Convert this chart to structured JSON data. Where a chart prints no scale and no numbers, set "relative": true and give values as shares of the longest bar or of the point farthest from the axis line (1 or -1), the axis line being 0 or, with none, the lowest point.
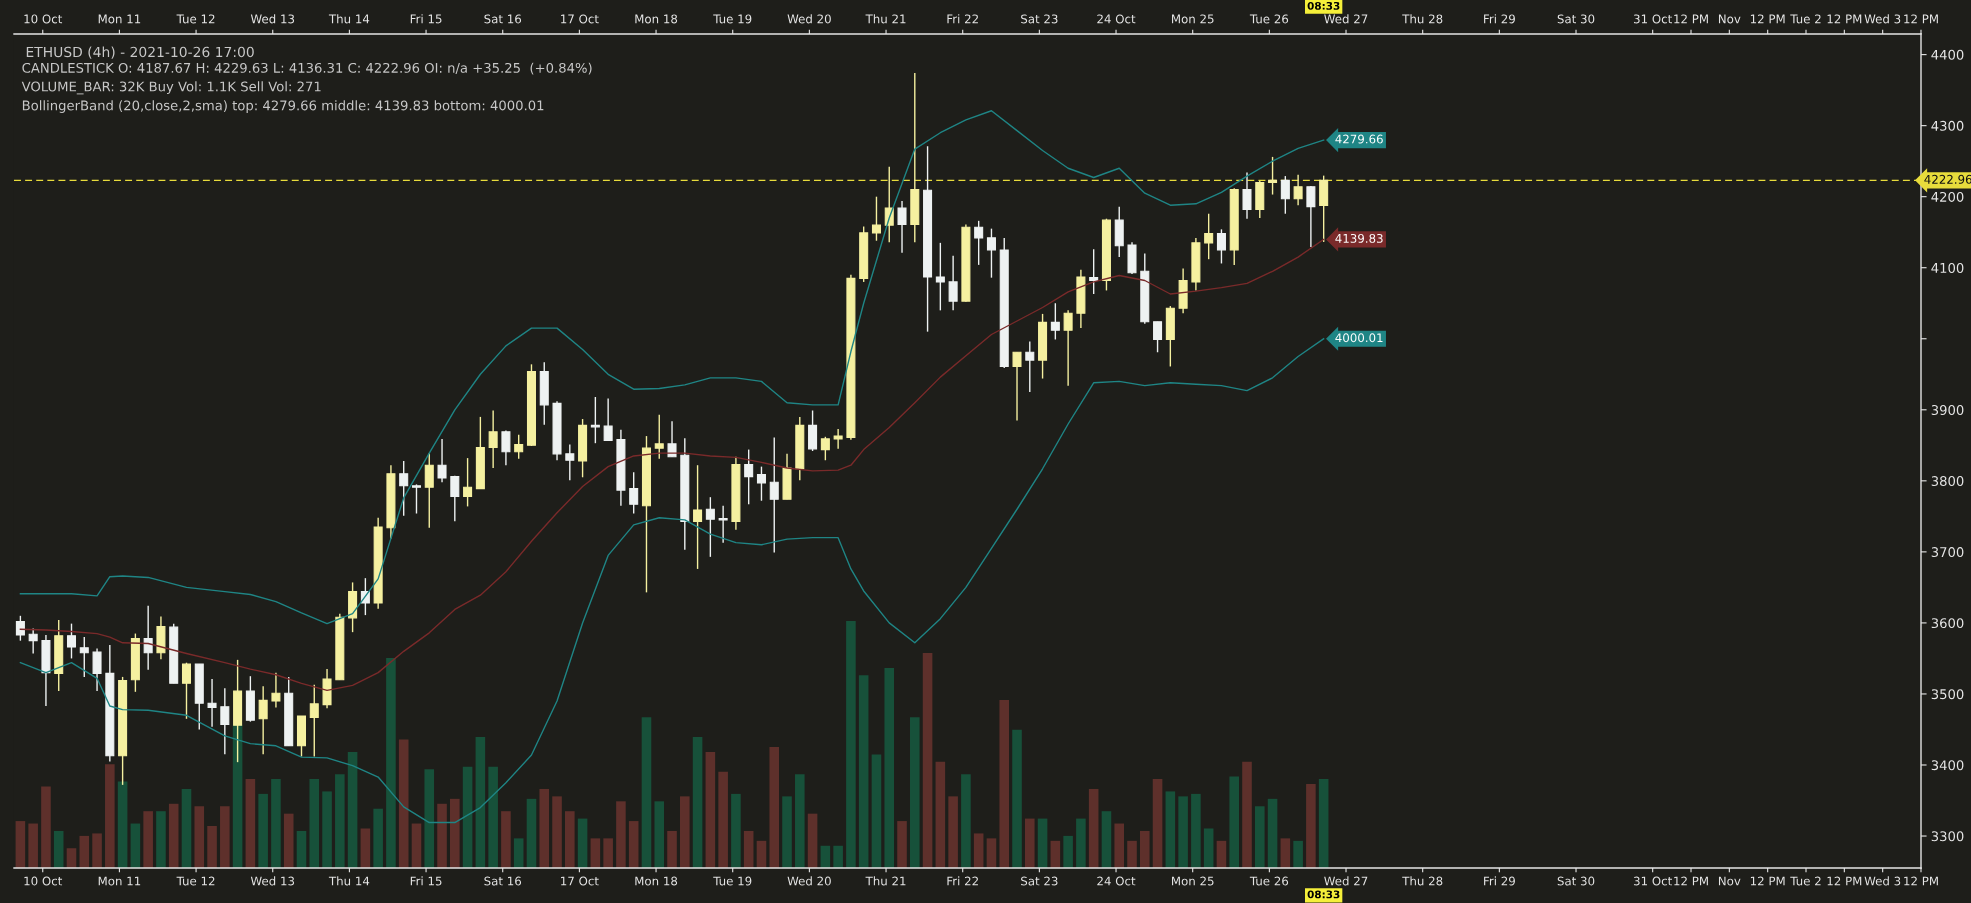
{
  "chart_data": [
    {
      "type": "candlestick",
      "title": "ETHUSD (4h) - 2021-10-26 17:00",
      "annotations": [
        "CANDLESTICK O: 4187.67 H: 4229.63 L: 4136.31 C: 4222.96 OI: n/a +35.25  (+0.84%)",
        "VOLUME_BAR: 32K Buy Vol: 1.1K Sell Vol: 271",
        "BollingerBand (20,close,2,sma) top: 4279.66 middle: 4139.83 bottom: 4000.01",
        "08:33",
        "08:33"
      ],
      "x": [
        "2021-10-09T17:00",
        "2021-10-09T21:00",
        "2021-10-10T01:00",
        "2021-10-10T05:00",
        "2021-10-10T09:00",
        "2021-10-10T13:00",
        "2021-10-10T17:00",
        "2021-10-10T21:00",
        "2021-10-11T01:00",
        "2021-10-11T05:00",
        "2021-10-11T09:00",
        "2021-10-11T13:00",
        "2021-10-11T17:00",
        "2021-10-11T21:00",
        "2021-10-12T01:00",
        "2021-10-12T05:00",
        "2021-10-12T09:00",
        "2021-10-12T13:00",
        "2021-10-12T17:00",
        "2021-10-12T21:00",
        "2021-10-13T01:00",
        "2021-10-13T05:00",
        "2021-10-13T09:00",
        "2021-10-13T13:00",
        "2021-10-13T17:00",
        "2021-10-13T21:00",
        "2021-10-14T01:00",
        "2021-10-14T05:00",
        "2021-10-14T09:00",
        "2021-10-14T13:00",
        "2021-10-14T17:00",
        "2021-10-14T21:00",
        "2021-10-15T01:00",
        "2021-10-15T05:00",
        "2021-10-15T09:00",
        "2021-10-15T13:00",
        "2021-10-15T17:00",
        "2021-10-15T21:00",
        "2021-10-16T01:00",
        "2021-10-16T05:00",
        "2021-10-16T09:00",
        "2021-10-16T13:00",
        "2021-10-16T17:00",
        "2021-10-16T21:00",
        "2021-10-17T01:00",
        "2021-10-17T05:00",
        "2021-10-17T09:00",
        "2021-10-17T13:00",
        "2021-10-17T17:00",
        "2021-10-17T21:00",
        "2021-10-18T01:00",
        "2021-10-18T05:00",
        "2021-10-18T09:00",
        "2021-10-18T13:00",
        "2021-10-18T17:00",
        "2021-10-18T21:00",
        "2021-10-19T01:00",
        "2021-10-19T05:00",
        "2021-10-19T09:00",
        "2021-10-19T13:00",
        "2021-10-19T17:00",
        "2021-10-19T21:00",
        "2021-10-20T01:00",
        "2021-10-20T05:00",
        "2021-10-20T09:00",
        "2021-10-20T13:00",
        "2021-10-20T17:00",
        "2021-10-20T21:00",
        "2021-10-21T01:00",
        "2021-10-21T05:00",
        "2021-10-21T09:00",
        "2021-10-21T13:00",
        "2021-10-21T17:00",
        "2021-10-21T21:00",
        "2021-10-22T01:00",
        "2021-10-22T05:00",
        "2021-10-22T09:00",
        "2021-10-22T13:00",
        "2021-10-22T17:00",
        "2021-10-22T21:00",
        "2021-10-23T01:00",
        "2021-10-23T05:00",
        "2021-10-23T09:00",
        "2021-10-23T13:00",
        "2021-10-23T17:00",
        "2021-10-23T21:00",
        "2021-10-24T01:00",
        "2021-10-24T05:00",
        "2021-10-24T09:00",
        "2021-10-24T13:00",
        "2021-10-24T17:00",
        "2021-10-24T21:00",
        "2021-10-25T01:00",
        "2021-10-25T05:00",
        "2021-10-25T09:00",
        "2021-10-25T13:00",
        "2021-10-25T17:00",
        "2021-10-25T21:00",
        "2021-10-26T01:00",
        "2021-10-26T05:00",
        "2021-10-26T09:00",
        "2021-10-26T13:00",
        "2021-10-26T17:00"
      ],
      "ohlc": [
        [
          3602,
          3610,
          3575,
          3583
        ],
        [
          3584,
          3592,
          3557,
          3575
        ],
        [
          3575,
          3583,
          3483,
          3530
        ],
        [
          3529,
          3604,
          3504,
          3582
        ],
        [
          3582,
          3599,
          3550,
          3566
        ],
        [
          3565,
          3580,
          3524,
          3558
        ],
        [
          3559,
          3564,
          3504,
          3529
        ],
        [
          3529,
          3569,
          3405,
          3413
        ],
        [
          3413,
          3524,
          3372,
          3519
        ],
        [
          3520,
          3585,
          3503,
          3578
        ],
        [
          3578,
          3624,
          3534,
          3558
        ],
        [
          3558,
          3609,
          3549,
          3595
        ],
        [
          3594,
          3599,
          3515,
          3515
        ],
        [
          3515,
          3544,
          3465,
          3542
        ],
        [
          3542,
          3542,
          3450,
          3487
        ],
        [
          3487,
          3521,
          3454,
          3481
        ],
        [
          3482,
          3508,
          3415,
          3457
        ],
        [
          3456,
          3548,
          3404,
          3504
        ],
        [
          3504,
          3525,
          3461,
          3463
        ],
        [
          3465,
          3511,
          3415,
          3491
        ],
        [
          3490,
          3530,
          3481,
          3501
        ],
        [
          3501,
          3524,
          3427,
          3427
        ],
        [
          3427,
          3469,
          3412,
          3469
        ],
        [
          3467,
          3513,
          3412,
          3486
        ],
        [
          3485,
          3535,
          3480,
          3521
        ],
        [
          3520,
          3613,
          3520,
          3608
        ],
        [
          3607,
          3657,
          3587,
          3644
        ],
        [
          3644,
          3663,
          3611,
          3628
        ],
        [
          3628,
          3748,
          3620,
          3735
        ],
        [
          3734,
          3822,
          3719,
          3810
        ],
        [
          3810,
          3828,
          3751,
          3793
        ],
        [
          3793,
          3795,
          3754,
          3791
        ],
        [
          3791,
          3839,
          3734,
          3822
        ],
        [
          3822,
          3859,
          3798,
          3804
        ],
        [
          3806,
          3807,
          3743,
          3778
        ],
        [
          3778,
          3832,
          3764,
          3791
        ],
        [
          3789,
          3890,
          3789,
          3847
        ],
        [
          3847,
          3899,
          3818,
          3869
        ],
        [
          3869,
          3871,
          3822,
          3841
        ],
        [
          3841,
          3865,
          3831,
          3851
        ],
        [
          3850,
          3964,
          3849,
          3954
        ],
        [
          3954,
          3967,
          3879,
          3907
        ],
        [
          3909,
          3912,
          3829,
          3838
        ],
        [
          3838,
          3851,
          3801,
          3829
        ],
        [
          3828,
          3887,
          3805,
          3878
        ],
        [
          3878,
          3918,
          3853,
          3876
        ],
        [
          3877,
          3916,
          3857,
          3857
        ],
        [
          3858,
          3872,
          3765,
          3787
        ],
        [
          3789,
          3812,
          3754,
          3767
        ],
        [
          3765,
          3863,
          3643,
          3846
        ],
        [
          3846,
          3893,
          3831,
          3852
        ],
        [
          3852,
          3884,
          3834,
          3834
        ],
        [
          3836,
          3860,
          3703,
          3743
        ],
        [
          3743,
          3822,
          3676,
          3759
        ],
        [
          3760,
          3777,
          3693,
          3746
        ],
        [
          3747,
          3765,
          3713,
          3745
        ],
        [
          3743,
          3834,
          3731,
          3823
        ],
        [
          3823,
          3844,
          3767,
          3806
        ],
        [
          3809,
          3820,
          3772,
          3797
        ],
        [
          3798,
          3861,
          3699,
          3774
        ],
        [
          3774,
          3838,
          3774,
          3818
        ],
        [
          3817,
          3890,
          3801,
          3878
        ],
        [
          3878,
          3899,
          3842,
          3845
        ],
        [
          3844,
          3862,
          3829,
          3859
        ],
        [
          3859,
          3873,
          3845,
          3863
        ],
        [
          3861,
          4090,
          3858,
          4085
        ],
        [
          4085,
          4158,
          4080,
          4149
        ],
        [
          4149,
          4200,
          4138,
          4160
        ],
        [
          4160,
          4242,
          4136,
          4184
        ],
        [
          4184,
          4194,
          4121,
          4161
        ],
        [
          4161,
          4374,
          4136,
          4210
        ],
        [
          4209,
          4271,
          4010,
          4087
        ],
        [
          4087,
          4135,
          4040,
          4080
        ],
        [
          4080,
          4117,
          4040,
          4053
        ],
        [
          4053,
          4161,
          4052,
          4157
        ],
        [
          4157,
          4166,
          4104,
          4142
        ],
        [
          4142,
          4155,
          4086,
          4125
        ],
        [
          4125,
          4142,
          3959,
          3961
        ],
        [
          3961,
          3981,
          3885,
          3981
        ],
        [
          3981,
          3996,
          3925,
          3970
        ],
        [
          3970,
          4035,
          3944,
          4023
        ],
        [
          4023,
          4050,
          3999,
          4012
        ],
        [
          4012,
          4040,
          3934,
          4036
        ],
        [
          4036,
          4097,
          4015,
          4087
        ],
        [
          4086,
          4126,
          4063,
          4082
        ],
        [
          4082,
          4169,
          4068,
          4167
        ],
        [
          4167,
          4186,
          4115,
          4131
        ],
        [
          4132,
          4136,
          4091,
          4093
        ],
        [
          4095,
          4120,
          4021,
          4024
        ],
        [
          4024,
          4024,
          3981,
          3999
        ],
        [
          3999,
          4046,
          3961,
          4043
        ],
        [
          4043,
          4099,
          4036,
          4082
        ],
        [
          4080,
          4142,
          4068,
          4135
        ],
        [
          4135,
          4176,
          4112,
          4148
        ],
        [
          4148,
          4154,
          4106,
          4125
        ],
        [
          4125,
          4212,
          4104,
          4210
        ],
        [
          4210,
          4234,
          4169,
          4182
        ],
        [
          4182,
          4222,
          4170,
          4220
        ],
        [
          4220,
          4256,
          4203,
          4223
        ],
        [
          4223,
          4229,
          4176,
          4197
        ],
        [
          4197,
          4231,
          4188,
          4214
        ],
        [
          4214,
          4215,
          4129,
          4186
        ],
        [
          4187.67,
          4229.63,
          4136.31,
          4222.96
        ]
      ],
      "colors": [
        "#eef2f2",
        "#eef2f2",
        "#eef2f2",
        "#f5f0a0",
        "#eef2f2",
        "#eef2f2",
        "#eef2f2",
        "#eef2f2",
        "#f5f0a0",
        "#f5f0a0",
        "#eef2f2",
        "#f5f0a0",
        "#eef2f2",
        "#f5f0a0",
        "#eef2f2",
        "#eef2f2",
        "#eef2f2",
        "#f5f0a0",
        "#eef2f2",
        "#f5f0a0",
        "#f5f0a0",
        "#eef2f2",
        "#f5f0a0",
        "#f5f0a0",
        "#f5f0a0",
        "#f5f0a0",
        "#f5f0a0",
        "#eef2f2",
        "#f5f0a0",
        "#f5f0a0",
        "#eef2f2",
        "#eef2f2",
        "#f5f0a0",
        "#eef2f2",
        "#eef2f2",
        "#f5f0a0",
        "#f5f0a0",
        "#f5f0a0",
        "#eef2f2",
        "#f5f0a0",
        "#f5f0a0",
        "#eef2f2",
        "#eef2f2",
        "#eef2f2",
        "#f5f0a0",
        "#eef2f2",
        "#eef2f2",
        "#eef2f2",
        "#eef2f2",
        "#f5f0a0",
        "#f5f0a0",
        "#eef2f2",
        "#eef2f2",
        "#f5f0a0",
        "#eef2f2",
        "#eef2f2",
        "#f5f0a0",
        "#eef2f2",
        "#eef2f2",
        "#eef2f2",
        "#f5f0a0",
        "#f5f0a0",
        "#eef2f2",
        "#f5f0a0",
        "#f5f0a0",
        "#f5f0a0",
        "#f5f0a0",
        "#f5f0a0",
        "#f5f0a0",
        "#eef2f2",
        "#f5f0a0",
        "#eef2f2",
        "#eef2f2",
        "#eef2f2",
        "#f5f0a0",
        "#eef2f2",
        "#eef2f2",
        "#eef2f2",
        "#f5f0a0",
        "#eef2f2",
        "#f5f0a0",
        "#eef2f2",
        "#f5f0a0",
        "#f5f0a0",
        "#eef2f2",
        "#f5f0a0",
        "#eef2f2",
        "#eef2f2",
        "#eef2f2",
        "#eef2f2",
        "#f5f0a0",
        "#f5f0a0",
        "#f5f0a0",
        "#f5f0a0",
        "#eef2f2",
        "#f5f0a0",
        "#eef2f2",
        "#f5f0a0",
        "#f5f0a0",
        "#eef2f2",
        "#f5f0a0",
        "#eef2f2",
        "#f5f0a0"
      ],
      "series": [
        {
          "type": "line",
          "color": "#1f8585",
          "x": [
            "2021-10-09T17:00",
            "2021-10-10T01:00",
            "2021-10-10T09:00",
            "2021-10-10T17:00",
            "2021-10-10T21:00",
            "2021-10-11T01:00",
            "2021-10-11T09:00",
            "2021-10-11T21:00",
            "2021-10-12T09:00",
            "2021-10-12T17:00",
            "2021-10-13T01:00",
            "2021-10-13T09:00",
            "2021-10-13T17:00",
            "2021-10-14T01:00",
            "2021-10-14T09:00",
            "2021-10-14T17:00",
            "2021-10-15T01:00",
            "2021-10-15T09:00",
            "2021-10-15T17:00",
            "2021-10-16T01:00",
            "2021-10-16T09:00",
            "2021-10-16T17:00",
            "2021-10-17T01:00",
            "2021-10-17T09:00",
            "2021-10-17T17:00",
            "2021-10-18T01:00",
            "2021-10-18T09:00",
            "2021-10-18T17:00",
            "2021-10-19T01:00",
            "2021-10-19T09:00",
            "2021-10-19T17:00",
            "2021-10-20T01:00",
            "2021-10-20T09:00",
            "2021-10-20T13:00",
            "2021-10-20T17:00",
            "2021-10-21T01:00",
            "2021-10-21T09:00",
            "2021-10-21T17:00",
            "2021-10-22T01:00",
            "2021-10-22T09:00",
            "2021-10-22T17:00",
            "2021-10-23T01:00",
            "2021-10-23T09:00",
            "2021-10-23T17:00",
            "2021-10-24T01:00",
            "2021-10-24T09:00",
            "2021-10-24T17:00",
            "2021-10-25T01:00",
            "2021-10-25T09:00",
            "2021-10-25T17:00",
            "2021-10-26T01:00",
            "2021-10-26T09:00",
            "2021-10-26T17:00"
          ],
          "values": [
            3641,
            3641,
            3641,
            3638,
            3665,
            3666,
            3664,
            3650,
            3644,
            3640,
            3630,
            3614,
            3599,
            3613,
            3662,
            3776,
            3839,
            3900,
            3950,
            3990,
            4015,
            4015,
            3985,
            3950,
            3929,
            3930,
            3935,
            3945,
            3945,
            3940,
            3910,
            3907,
            3907,
            3982,
            4050,
            4170,
            4267,
            4290,
            4308,
            4321,
            4293,
            4265,
            4240,
            4227,
            4240,
            4205,
            4188,
            4190,
            4206,
            4229,
            4250,
            4268,
            4279.66
          ],
          "value_labels": [
            null,
            null,
            null,
            null,
            null,
            null,
            null,
            null,
            null,
            null,
            null,
            null,
            null,
            null,
            null,
            null,
            null,
            null,
            null,
            null,
            null,
            null,
            null,
            null,
            null,
            null,
            null,
            null,
            null,
            null,
            null,
            null,
            null,
            null,
            null,
            null,
            null,
            null,
            null,
            null,
            null,
            null,
            null,
            null,
            null,
            null,
            null,
            null,
            null,
            null,
            null,
            null,
            "4279.66"
          ]
        },
        {
          "type": "line",
          "color": "#7a2a2a",
          "x": [
            "2021-10-09T17:00",
            "2021-10-10T01:00",
            "2021-10-10T09:00",
            "2021-10-10T17:00",
            "2021-10-10T21:00",
            "2021-10-11T01:00",
            "2021-10-11T09:00",
            "2021-10-11T21:00",
            "2021-10-12T09:00",
            "2021-10-12T17:00",
            "2021-10-13T01:00",
            "2021-10-13T09:00",
            "2021-10-13T17:00",
            "2021-10-14T01:00",
            "2021-10-14T09:00",
            "2021-10-14T17:00",
            "2021-10-15T01:00",
            "2021-10-15T09:00",
            "2021-10-15T17:00",
            "2021-10-16T01:00",
            "2021-10-16T09:00",
            "2021-10-16T17:00",
            "2021-10-17T01:00",
            "2021-10-17T09:00",
            "2021-10-17T17:00",
            "2021-10-18T01:00",
            "2021-10-18T09:00",
            "2021-10-18T17:00",
            "2021-10-19T01:00",
            "2021-10-19T09:00",
            "2021-10-19T17:00",
            "2021-10-20T01:00",
            "2021-10-20T09:00",
            "2021-10-20T13:00",
            "2021-10-20T17:00",
            "2021-10-21T01:00",
            "2021-10-21T09:00",
            "2021-10-21T17:00",
            "2021-10-22T01:00",
            "2021-10-22T09:00",
            "2021-10-22T17:00",
            "2021-10-23T01:00",
            "2021-10-23T09:00",
            "2021-10-23T17:00",
            "2021-10-24T01:00",
            "2021-10-24T09:00",
            "2021-10-24T17:00",
            "2021-10-25T01:00",
            "2021-10-25T09:00",
            "2021-10-25T17:00",
            "2021-10-26T01:00",
            "2021-10-26T09:00",
            "2021-10-26T17:00"
          ],
          "values": [
            3591,
            3590,
            3588,
            3585,
            3580,
            3572,
            3571,
            3557,
            3544,
            3535,
            3527,
            3515,
            3505,
            3512,
            3530,
            3560,
            3586,
            3619,
            3639,
            3672,
            3715,
            3755,
            3792,
            3820,
            3835,
            3839,
            3839,
            3835,
            3833,
            3826,
            3818,
            3814,
            3815,
            3822,
            3844,
            3875,
            3910,
            3946,
            3976,
            4006,
            4025,
            4044,
            4066,
            4080,
            4089,
            4082,
            4063,
            4067,
            4072,
            4078,
            4095,
            4115,
            4139.83
          ],
          "value_labels": [
            null,
            null,
            null,
            null,
            null,
            null,
            null,
            null,
            null,
            null,
            null,
            null,
            null,
            null,
            null,
            null,
            null,
            null,
            null,
            null,
            null,
            null,
            null,
            null,
            null,
            null,
            null,
            null,
            null,
            null,
            null,
            null,
            null,
            null,
            null,
            null,
            null,
            null,
            null,
            null,
            null,
            null,
            null,
            null,
            null,
            null,
            null,
            null,
            null,
            null,
            null,
            null,
            "4139.83"
          ]
        },
        {
          "type": "line",
          "color": "#1f8585",
          "x": [
            "2021-10-09T17:00",
            "2021-10-10T01:00",
            "2021-10-10T09:00",
            "2021-10-10T17:00",
            "2021-10-10T21:00",
            "2021-10-11T01:00",
            "2021-10-11T09:00",
            "2021-10-11T21:00",
            "2021-10-12T09:00",
            "2021-10-12T17:00",
            "2021-10-13T01:00",
            "2021-10-13T09:00",
            "2021-10-13T17:00",
            "2021-10-14T01:00",
            "2021-10-14T09:00",
            "2021-10-14T17:00",
            "2021-10-15T01:00",
            "2021-10-15T09:00",
            "2021-10-15T17:00",
            "2021-10-16T01:00",
            "2021-10-16T09:00",
            "2021-10-16T17:00",
            "2021-10-17T01:00",
            "2021-10-17T09:00",
            "2021-10-17T17:00",
            "2021-10-18T01:00",
            "2021-10-18T09:00",
            "2021-10-18T17:00",
            "2021-10-19T01:00",
            "2021-10-19T09:00",
            "2021-10-19T17:00",
            "2021-10-20T01:00",
            "2021-10-20T09:00",
            "2021-10-20T13:00",
            "2021-10-20T17:00",
            "2021-10-21T01:00",
            "2021-10-21T09:00",
            "2021-10-21T17:00",
            "2021-10-22T01:00",
            "2021-10-22T09:00",
            "2021-10-22T17:00",
            "2021-10-23T01:00",
            "2021-10-23T09:00",
            "2021-10-23T17:00",
            "2021-10-24T01:00",
            "2021-10-24T09:00",
            "2021-10-24T17:00",
            "2021-10-25T01:00",
            "2021-10-25T09:00",
            "2021-10-25T17:00",
            "2021-10-26T01:00",
            "2021-10-26T09:00",
            "2021-10-26T17:00"
          ],
          "values": [
            3544,
            3530,
            3544,
            3522,
            3483,
            3478,
            3477,
            3470,
            3441,
            3430,
            3427,
            3411,
            3410,
            3399,
            3383,
            3341,
            3319,
            3319,
            3340,
            3375,
            3414,
            3490,
            3600,
            3695,
            3738,
            3748,
            3745,
            3725,
            3713,
            3710,
            3718,
            3720,
            3720,
            3676,
            3645,
            3600,
            3572,
            3606,
            3650,
            3705,
            3760,
            3817,
            3880,
            3938,
            3940,
            3934,
            3938,
            3936,
            3934,
            3927,
            3945,
            3975,
            4000.01
          ],
          "value_labels": [
            null,
            null,
            null,
            null,
            null,
            null,
            null,
            null,
            null,
            null,
            null,
            null,
            null,
            null,
            null,
            null,
            null,
            null,
            null,
            null,
            null,
            null,
            null,
            null,
            null,
            null,
            null,
            null,
            null,
            null,
            null,
            null,
            null,
            null,
            null,
            null,
            null,
            null,
            null,
            null,
            null,
            null,
            null,
            null,
            null,
            null,
            null,
            null,
            null,
            null,
            null,
            null,
            "4000.01"
          ]
        }
      ],
      "ref_lines": [
        {
          "axis": "y",
          "value": 4222.96,
          "label": "4222.96",
          "color": "#e8dc3c",
          "line_style": "dashed"
        }
      ],
      "xlim": [
        "2021-10-09T15:00",
        "2021-11-03T12:00"
      ],
      "xticks": [
        {
          "value": "2021-10-10",
          "label": "10 Oct"
        },
        {
          "value": "2021-10-11",
          "label": "Mon 11"
        },
        {
          "value": "2021-10-12",
          "label": "Tue 12"
        },
        {
          "value": "2021-10-13",
          "label": "Wed 13"
        },
        {
          "value": "2021-10-14",
          "label": "Thu 14"
        },
        {
          "value": "2021-10-15",
          "label": "Fri 15"
        },
        {
          "value": "2021-10-16",
          "label": "Sat 16"
        },
        {
          "value": "2021-10-17",
          "label": "17 Oct"
        },
        {
          "value": "2021-10-18",
          "label": "Mon 18"
        },
        {
          "value": "2021-10-19",
          "label": "Tue 19"
        },
        {
          "value": "2021-10-20",
          "label": "Wed 20"
        },
        {
          "value": "2021-10-21",
          "label": "Thu 21"
        },
        {
          "value": "2021-10-22",
          "label": "Fri 22"
        },
        {
          "value": "2021-10-23",
          "label": "Sat 23"
        },
        {
          "value": "2021-10-24",
          "label": "24 Oct"
        },
        {
          "value": "2021-10-25",
          "label": "Mon 25"
        },
        {
          "value": "2021-10-26",
          "label": "Tue 26"
        },
        {
          "value": "2021-10-27",
          "label": "Wed 27"
        },
        {
          "value": "2021-10-28",
          "label": "Thu 28"
        },
        {
          "value": "2021-10-29",
          "label": "Fri 29"
        },
        {
          "value": "2021-10-30",
          "label": "Sat 30"
        },
        {
          "value": "2021-10-31",
          "label": "31 Oct"
        },
        {
          "value": "2021-10-31T12:00",
          "label": "12 PM"
        },
        {
          "value": "2021-11-01",
          "label": "Nov"
        },
        {
          "value": "2021-11-01T12:00",
          "label": "12 PM"
        },
        {
          "value": "2021-11-02",
          "label": "Tue 2"
        },
        {
          "value": "2021-11-02T12:00",
          "label": "12 PM"
        },
        {
          "value": "2021-11-03",
          "label": "Wed 3"
        },
        {
          "value": "2021-11-03T12:00",
          "label": "12 PM"
        }
      ],
      "x2lim": [
        "2021-10-09T15:00",
        "2021-11-03T12:00"
      ],
      "x2ticks": [
        {
          "value": "2021-10-10",
          "label": "10 Oct"
        },
        {
          "value": "2021-10-11",
          "label": "Mon 11"
        },
        {
          "value": "2021-10-12",
          "label": "Tue 12"
        },
        {
          "value": "2021-10-13",
          "label": "Wed 13"
        },
        {
          "value": "2021-10-14",
          "label": "Thu 14"
        },
        {
          "value": "2021-10-15",
          "label": "Fri 15"
        },
        {
          "value": "2021-10-16",
          "label": "Sat 16"
        },
        {
          "value": "2021-10-17",
          "label": "17 Oct"
        },
        {
          "value": "2021-10-18",
          "label": "Mon 18"
        },
        {
          "value": "2021-10-19",
          "label": "Tue 19"
        },
        {
          "value": "2021-10-20",
          "label": "Wed 20"
        },
        {
          "value": "2021-10-21",
          "label": "Thu 21"
        },
        {
          "value": "2021-10-22",
          "label": "Fri 22"
        },
        {
          "value": "2021-10-23",
          "label": "Sat 23"
        },
        {
          "value": "2021-10-24",
          "label": "24 Oct"
        },
        {
          "value": "2021-10-25",
          "label": "Mon 25"
        },
        {
          "value": "2021-10-26",
          "label": "Tue 26"
        },
        {
          "value": "2021-10-27",
          "label": "Wed 27"
        },
        {
          "value": "2021-10-28",
          "label": "Thu 28"
        },
        {
          "value": "2021-10-29",
          "label": "Fri 29"
        },
        {
          "value": "2021-10-30",
          "label": "Sat 30"
        },
        {
          "value": "2021-10-31",
          "label": "31 Oct"
        },
        {
          "value": "2021-10-31T12:00",
          "label": "12 PM"
        },
        {
          "value": "2021-11-01",
          "label": "Nov"
        },
        {
          "value": "2021-11-01T12:00",
          "label": "12 PM"
        },
        {
          "value": "2021-11-02",
          "label": "Tue 2"
        },
        {
          "value": "2021-11-02T12:00",
          "label": "12 PM"
        },
        {
          "value": "2021-11-03",
          "label": "Wed 3"
        },
        {
          "value": "2021-11-03T12:00",
          "label": "12 PM"
        }
      ],
      "ylim": [
        3255,
        4429
      ],
      "yticks": [
        3300,
        3400,
        3500,
        3600,
        3700,
        3800,
        3900,
        {
          "value": 4000,
          "label": null
        },
        4100,
        4200,
        4300,
        4400
      ]
    },
    {
      "type": "bar",
      "relative": true,
      "tick_labels": false,
      "x": [
        "2021-10-09T17:00",
        "2021-10-09T21:00",
        "2021-10-10T01:00",
        "2021-10-10T05:00",
        "2021-10-10T09:00",
        "2021-10-10T13:00",
        "2021-10-10T17:00",
        "2021-10-10T21:00",
        "2021-10-11T01:00",
        "2021-10-11T05:00",
        "2021-10-11T09:00",
        "2021-10-11T13:00",
        "2021-10-11T17:00",
        "2021-10-11T21:00",
        "2021-10-12T01:00",
        "2021-10-12T05:00",
        "2021-10-12T09:00",
        "2021-10-12T13:00",
        "2021-10-12T17:00",
        "2021-10-12T21:00",
        "2021-10-13T01:00",
        "2021-10-13T05:00",
        "2021-10-13T09:00",
        "2021-10-13T13:00",
        "2021-10-13T17:00",
        "2021-10-13T21:00",
        "2021-10-14T01:00",
        "2021-10-14T05:00",
        "2021-10-14T09:00",
        "2021-10-14T13:00",
        "2021-10-14T17:00",
        "2021-10-14T21:00",
        "2021-10-15T01:00",
        "2021-10-15T05:00",
        "2021-10-15T09:00",
        "2021-10-15T13:00",
        "2021-10-15T17:00",
        "2021-10-15T21:00",
        "2021-10-16T01:00",
        "2021-10-16T05:00",
        "2021-10-16T09:00",
        "2021-10-16T13:00",
        "2021-10-16T17:00",
        "2021-10-16T21:00",
        "2021-10-17T01:00",
        "2021-10-17T05:00",
        "2021-10-17T09:00",
        "2021-10-17T13:00",
        "2021-10-17T17:00",
        "2021-10-17T21:00",
        "2021-10-18T01:00",
        "2021-10-18T05:00",
        "2021-10-18T09:00",
        "2021-10-18T13:00",
        "2021-10-18T17:00",
        "2021-10-18T21:00",
        "2021-10-19T01:00",
        "2021-10-19T05:00",
        "2021-10-19T09:00",
        "2021-10-19T13:00",
        "2021-10-19T17:00",
        "2021-10-19T21:00",
        "2021-10-20T01:00",
        "2021-10-20T05:00",
        "2021-10-20T09:00",
        "2021-10-20T13:00",
        "2021-10-20T17:00",
        "2021-10-20T21:00",
        "2021-10-21T01:00",
        "2021-10-21T05:00",
        "2021-10-21T09:00",
        "2021-10-21T13:00",
        "2021-10-21T17:00",
        "2021-10-21T21:00",
        "2021-10-22T01:00",
        "2021-10-22T05:00",
        "2021-10-22T09:00",
        "2021-10-22T13:00",
        "2021-10-22T17:00",
        "2021-10-22T21:00",
        "2021-10-23T01:00",
        "2021-10-23T05:00",
        "2021-10-23T09:00",
        "2021-10-23T13:00",
        "2021-10-23T17:00",
        "2021-10-23T21:00",
        "2021-10-24T01:00",
        "2021-10-24T05:00",
        "2021-10-24T09:00",
        "2021-10-24T13:00",
        "2021-10-24T17:00",
        "2021-10-24T21:00",
        "2021-10-25T01:00",
        "2021-10-25T05:00",
        "2021-10-25T09:00",
        "2021-10-25T13:00",
        "2021-10-25T17:00",
        "2021-10-25T21:00",
        "2021-10-26T01:00",
        "2021-10-26T05:00",
        "2021-10-26T09:00",
        "2021-10-26T13:00",
        "2021-10-26T17:00"
      ],
      "values": [
        0.19,
        0.18,
        0.33,
        0.15,
        0.08,
        0.13,
        0.14,
        0.42,
        0.35,
        0.18,
        0.23,
        0.23,
        0.26,
        0.32,
        0.25,
        0.17,
        0.25,
        0.58,
        0.36,
        0.3,
        0.36,
        0.22,
        0.15,
        0.36,
        0.31,
        0.38,
        0.47,
        0.16,
        0.24,
        0.85,
        0.52,
        0.18,
        0.4,
        0.26,
        0.28,
        0.41,
        0.53,
        0.41,
        0.23,
        0.12,
        0.28,
        0.32,
        0.29,
        0.23,
        0.2,
        0.12,
        0.12,
        0.27,
        0.19,
        0.61,
        0.27,
        0.15,
        0.29,
        0.53,
        0.47,
        0.39,
        0.3,
        0.15,
        0.11,
        0.49,
        0.29,
        0.38,
        0.22,
        0.09,
        0.09,
        1,
        0.78,
        0.46,
        0.81,
        0.19,
        0.61,
        0.87,
        0.43,
        0.29,
        0.38,
        0.14,
        0.12,
        0.68,
        0.56,
        0.2,
        0.2,
        0.11,
        0.13,
        0.2,
        0.32,
        0.23,
        0.18,
        0.11,
        0.15,
        0.36,
        0.31,
        0.29,
        0.3,
        0.16,
        0.11,
        0.37,
        0.43,
        0.25,
        0.28,
        0.12,
        0.11,
        0.34,
        0.36
      ],
      "colors": [
        "#5e302b",
        "#5e302b",
        "#5e302b",
        "#17513a",
        "#5e302b",
        "#5e302b",
        "#5e302b",
        "#5e302b",
        "#17513a",
        "#17513a",
        "#5e302b",
        "#17513a",
        "#5e302b",
        "#17513a",
        "#5e302b",
        "#5e302b",
        "#5e302b",
        "#17513a",
        "#5e302b",
        "#17513a",
        "#17513a",
        "#5e302b",
        "#17513a",
        "#17513a",
        "#17513a",
        "#17513a",
        "#17513a",
        "#5e302b",
        "#17513a",
        "#17513a",
        "#5e302b",
        "#5e302b",
        "#17513a",
        "#5e302b",
        "#5e302b",
        "#17513a",
        "#17513a",
        "#17513a",
        "#5e302b",
        "#17513a",
        "#17513a",
        "#5e302b",
        "#5e302b",
        "#5e302b",
        "#17513a",
        "#5e302b",
        "#5e302b",
        "#5e302b",
        "#5e302b",
        "#17513a",
        "#17513a",
        "#5e302b",
        "#5e302b",
        "#17513a",
        "#5e302b",
        "#5e302b",
        "#17513a",
        "#5e302b",
        "#5e302b",
        "#5e302b",
        "#17513a",
        "#17513a",
        "#5e302b",
        "#17513a",
        "#17513a",
        "#17513a",
        "#17513a",
        "#17513a",
        "#17513a",
        "#5e302b",
        "#17513a",
        "#5e302b",
        "#5e302b",
        "#5e302b",
        "#17513a",
        "#5e302b",
        "#5e302b",
        "#5e302b",
        "#17513a",
        "#5e302b",
        "#17513a",
        "#5e302b",
        "#17513a",
        "#17513a",
        "#5e302b",
        "#17513a",
        "#5e302b",
        "#5e302b",
        "#5e302b",
        "#5e302b",
        "#17513a",
        "#17513a",
        "#17513a",
        "#17513a",
        "#5e302b",
        "#17513a",
        "#5e302b",
        "#17513a",
        "#17513a",
        "#5e302b",
        "#17513a",
        "#5e302b",
        "#17513a"
      ],
      "xlim": [
        "2021-10-09T15:00",
        "2021-11-03T12:00"
      ]
    }
  ]
}
